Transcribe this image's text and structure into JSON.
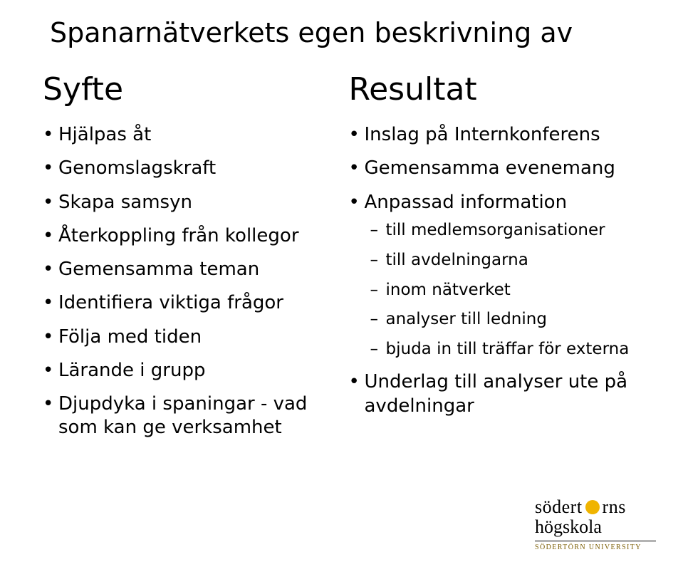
{
  "title": "Spanarnätverkets egen beskrivning av",
  "left": {
    "heading": "Syfte",
    "items": [
      "Hjälpas åt",
      "Genomslagskraft",
      "Skapa samsyn",
      "Återkoppling från kollegor",
      "Gemensamma teman",
      "Identifiera viktiga frågor",
      "Följa med tiden",
      "Lärande i grupp",
      "Djupdyka i spaningar - vad som kan ge verksamhet"
    ]
  },
  "right": {
    "heading": "Resultat",
    "items": [
      {
        "text": "Inslag på Internkonferens"
      },
      {
        "text": "Gemensamma evenemang"
      },
      {
        "text": "Anpassad information",
        "sub": [
          "till medlemsorganisationer",
          "till avdelningarna",
          "inom nätverket",
          "analyser till ledning",
          "bjuda in till träffar för externa"
        ]
      },
      {
        "text": "Underlag till analyser ute på avdelningar"
      }
    ]
  },
  "logo": {
    "main1": "södert",
    "main2": "rns",
    "sub": "högskola",
    "subtitle": "SÖDERTÖRN UNIVERSITY",
    "dot_color": "#f0b400",
    "text_color": "#000000",
    "rule_color": "#000000",
    "subtitle_color": "#7a5c00"
  },
  "colors": {
    "background": "#ffffff",
    "text": "#000000"
  }
}
